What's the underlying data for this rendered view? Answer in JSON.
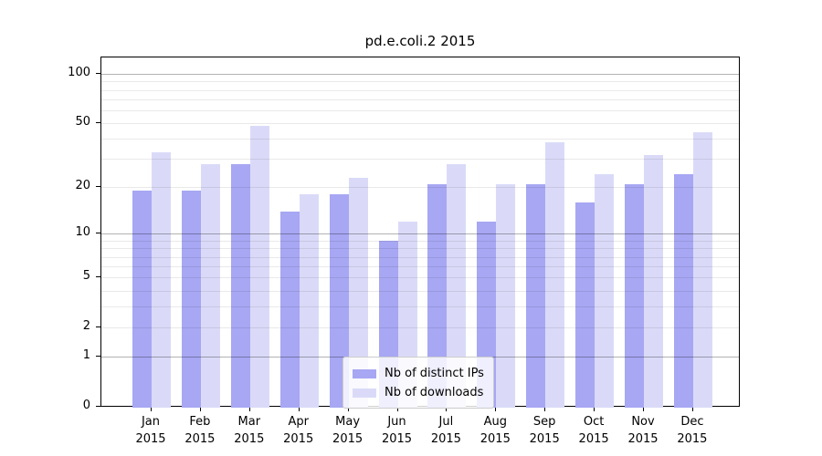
{
  "title": "pd.e.coli.2 2015",
  "axes": {
    "y_tick_labels": [
      100,
      50,
      20,
      10,
      5,
      2,
      1,
      0
    ],
    "y_major_gridlines": [
      1,
      10,
      100
    ],
    "y_minor_gridlines": [
      2,
      3,
      4,
      5,
      6,
      7,
      8,
      9,
      20,
      30,
      40,
      50,
      60,
      70,
      80,
      90
    ],
    "x_months": [
      "Jan",
      "Feb",
      "Mar",
      "Apr",
      "May",
      "Jun",
      "Jul",
      "Aug",
      "Sep",
      "Oct",
      "Nov",
      "Dec"
    ],
    "x_year": "2015"
  },
  "legend": {
    "items": [
      {
        "label": "Nb of distinct IPs",
        "color": "#a7a7f3"
      },
      {
        "label": "Nb of downloads",
        "color": "#dadaf8"
      }
    ]
  },
  "chart_data": {
    "type": "bar",
    "title": "pd.e.coli.2 2015",
    "categories": [
      "Jan 2015",
      "Feb 2015",
      "Mar 2015",
      "Apr 2015",
      "May 2015",
      "Jun 2015",
      "Jul 2015",
      "Aug 2015",
      "Sep 2015",
      "Oct 2015",
      "Nov 2015",
      "Dec 2015"
    ],
    "series": [
      {
        "name": "Nb of distinct IPs",
        "color": "#a7a7f3",
        "values": [
          19,
          19,
          28,
          14,
          18,
          9,
          21,
          12,
          21,
          16,
          21,
          24
        ]
      },
      {
        "name": "Nb of downloads",
        "color": "#dadaf8",
        "values": [
          33,
          28,
          48,
          18,
          23,
          12,
          28,
          21,
          38,
          24,
          32,
          44
        ]
      }
    ],
    "xlabel": "",
    "ylabel": "",
    "yscale": "log1p (symlog-like, linear near 0)",
    "y_ticks": [
      0,
      1,
      2,
      5,
      10,
      20,
      50,
      100
    ],
    "ylim": [
      0,
      126
    ],
    "grid": "horizontal major+minor, drawn above bars",
    "legend_position": "lower center inside plot"
  }
}
